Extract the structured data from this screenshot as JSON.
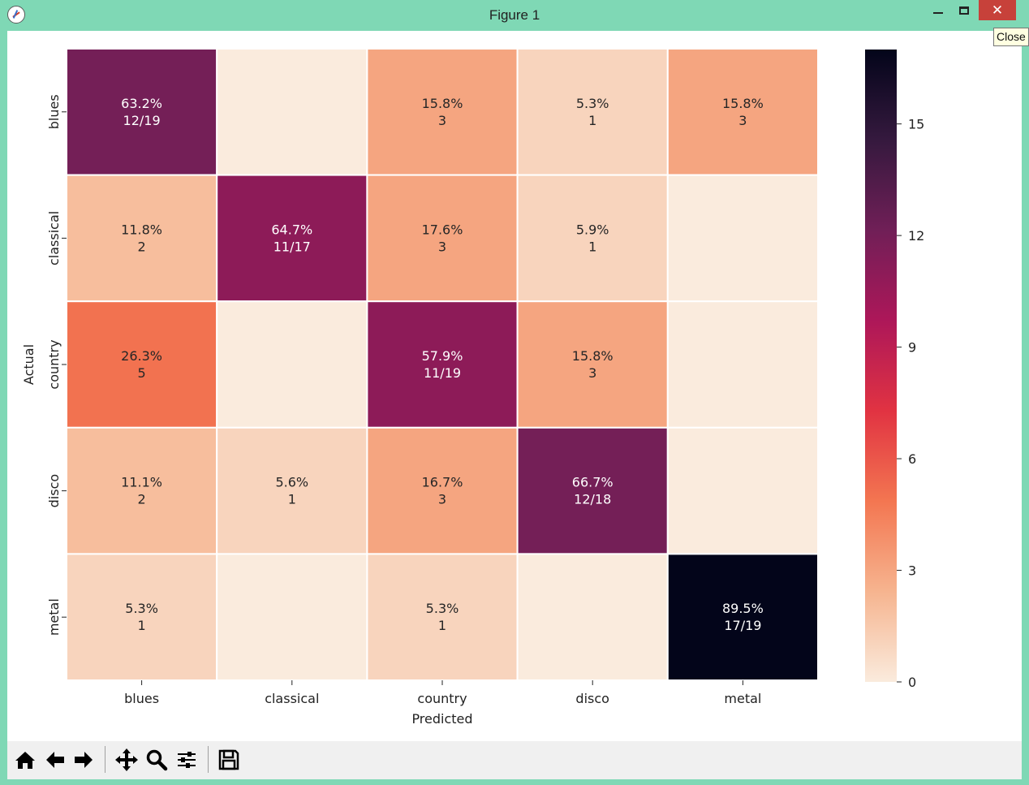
{
  "window": {
    "title": "Figure 1",
    "close_tooltip": "Close"
  },
  "toolbar": {
    "buttons": [
      {
        "name": "home-icon"
      },
      {
        "name": "back-arrow-icon"
      },
      {
        "name": "forward-arrow-icon"
      },
      {
        "name": "pan-icon"
      },
      {
        "name": "zoom-icon"
      },
      {
        "name": "configure-subplots-icon"
      },
      {
        "name": "save-icon"
      }
    ]
  },
  "chart_data": {
    "type": "heatmap",
    "title": "",
    "xlabel": "Predicted",
    "ylabel": "Actual",
    "x_categories": [
      "blues",
      "classical",
      "country",
      "disco",
      "metal"
    ],
    "y_categories": [
      "blues",
      "classical",
      "country",
      "disco",
      "metal"
    ],
    "values": [
      [
        12,
        0,
        3,
        1,
        3
      ],
      [
        2,
        11,
        3,
        1,
        0
      ],
      [
        5,
        0,
        11,
        3,
        0
      ],
      [
        2,
        1,
        3,
        12,
        0
      ],
      [
        1,
        0,
        1,
        0,
        17
      ]
    ],
    "annotations": [
      [
        [
          "63.2%",
          "12/19"
        ],
        [
          "",
          ""
        ],
        [
          "15.8%",
          "3"
        ],
        [
          "5.3%",
          "1"
        ],
        [
          "15.8%",
          "3"
        ]
      ],
      [
        [
          "11.8%",
          "2"
        ],
        [
          "64.7%",
          "11/17"
        ],
        [
          "17.6%",
          "3"
        ],
        [
          "5.9%",
          "1"
        ],
        [
          "",
          ""
        ]
      ],
      [
        [
          "26.3%",
          "5"
        ],
        [
          "",
          ""
        ],
        [
          "57.9%",
          "11/19"
        ],
        [
          "15.8%",
          "3"
        ],
        [
          "",
          ""
        ]
      ],
      [
        [
          "11.1%",
          "2"
        ],
        [
          "5.6%",
          "1"
        ],
        [
          "16.7%",
          "3"
        ],
        [
          "66.7%",
          "12/18"
        ],
        [
          "",
          ""
        ]
      ],
      [
        [
          "5.3%",
          "1"
        ],
        [
          "",
          ""
        ],
        [
          "5.3%",
          "1"
        ],
        [
          "",
          ""
        ],
        [
          "89.5%",
          "17/19"
        ]
      ]
    ],
    "colorbar": {
      "range": [
        0,
        17
      ],
      "ticks": [
        0,
        3,
        6,
        9,
        12,
        15
      ]
    },
    "colormap": "rocket_r",
    "colormap_stops": [
      "#faebdd",
      "#f6b48f",
      "#f37651",
      "#e13342",
      "#ad1759",
      "#701f57",
      "#35193e",
      "#03051a"
    ],
    "grid_line_color": "#ffffff"
  }
}
